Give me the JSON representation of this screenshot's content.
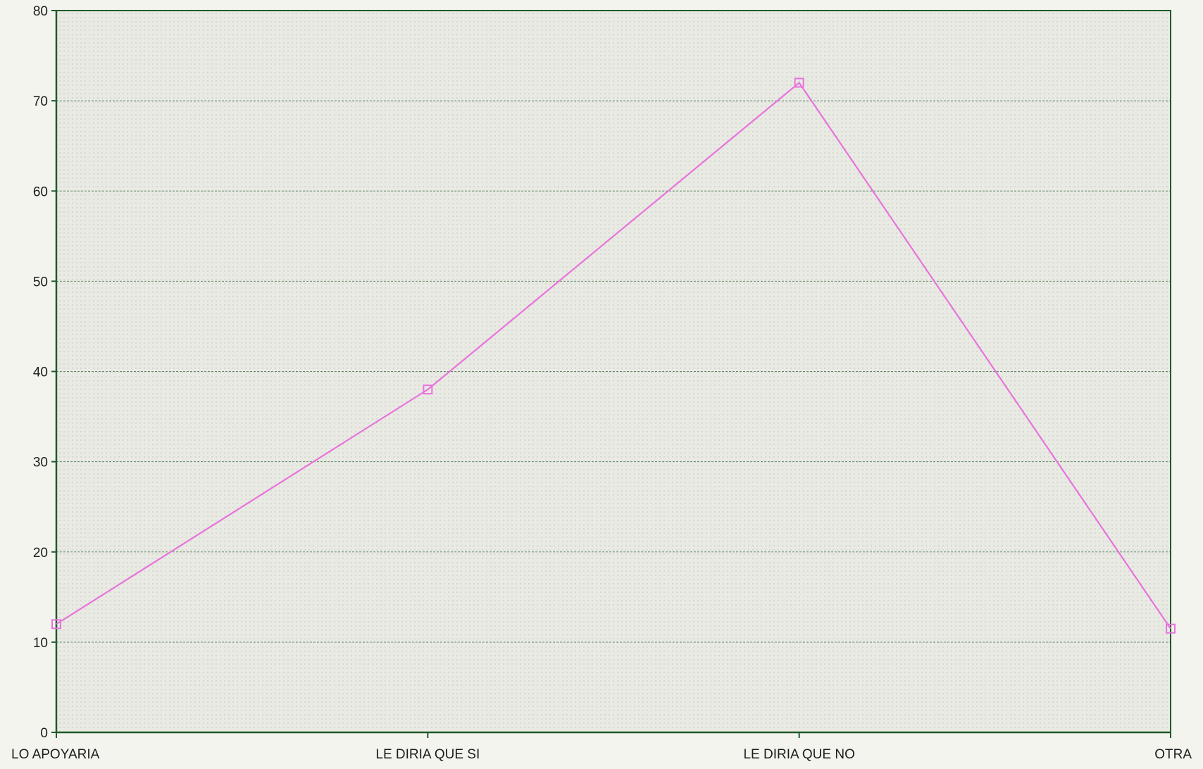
{
  "chart_data": {
    "type": "line",
    "title": "",
    "xlabel": "",
    "ylabel": "",
    "categories": [
      "LO APOYARIA",
      "LE DIRIA QUE SI",
      "LE DIRIA QUE NO",
      "OTRA"
    ],
    "series": [
      {
        "values": [
          12,
          38,
          72,
          11.5
        ]
      }
    ],
    "ylim": [
      0,
      80
    ],
    "yticks": [
      0,
      10,
      20,
      30,
      40,
      50,
      60,
      70,
      80
    ],
    "grid": true,
    "legend": "none"
  },
  "colors": {
    "background": "#f4f4ef",
    "plot_area": "#e9eae3",
    "axis": "#1f5a2c",
    "gridline": "#5f8a67",
    "series_line": "#e873dc",
    "marker": "#e873dc",
    "text": "#1c1c1c"
  }
}
